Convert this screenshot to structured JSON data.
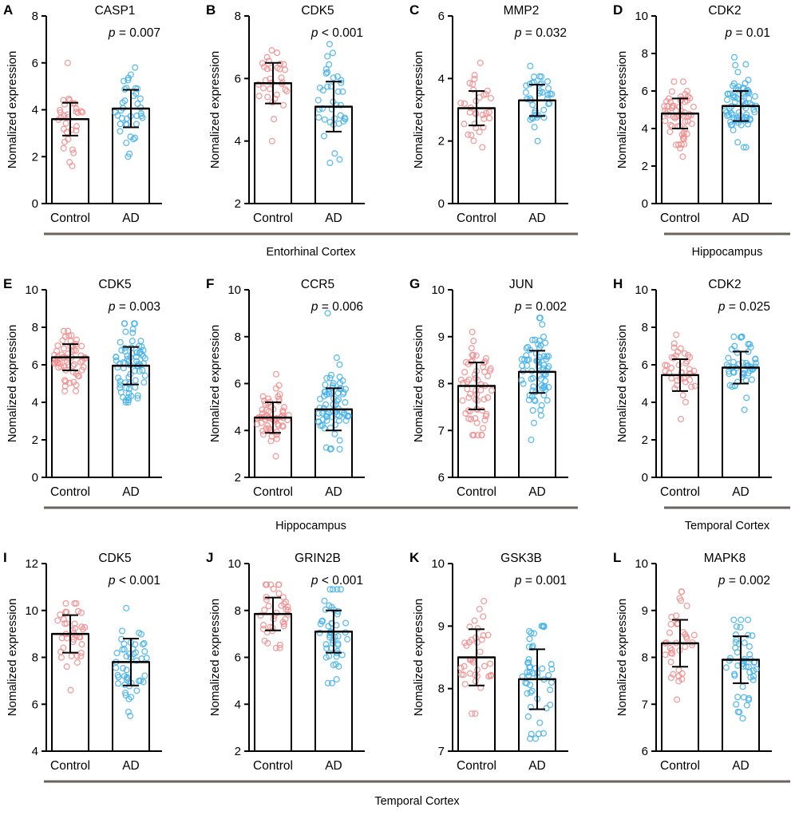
{
  "colors": {
    "control": "#f08c8c",
    "ad": "#42b0ea",
    "axis": "#000000",
    "bracket": "#6b635b"
  },
  "ylabel": "Nomalized expression",
  "chart_data": [
    {
      "panel": "A",
      "title": "CASP1",
      "type": "bar",
      "categories": [
        "Control",
        "AD"
      ],
      "values": [
        3.6,
        4.05
      ],
      "sd": [
        0.7,
        0.8
      ],
      "ylim": [
        0,
        8
      ],
      "yticks": [
        0,
        2,
        4,
        6,
        8
      ],
      "pvalue": "0.007",
      "p_op": "=",
      "n": [
        32,
        38
      ],
      "ctrl_range": [
        1.6,
        6.0
      ],
      "ad_range": [
        2.0,
        5.8
      ]
    },
    {
      "panel": "B",
      "title": "CDK5",
      "type": "bar",
      "categories": [
        "Control",
        "AD"
      ],
      "values": [
        5.85,
        5.1
      ],
      "sd": [
        0.65,
        0.8
      ],
      "ylim": [
        2,
        8
      ],
      "yticks": [
        2,
        4,
        6,
        8
      ],
      "pvalue": "0.001",
      "p_op": "<",
      "n": [
        32,
        38
      ],
      "ctrl_range": [
        4.0,
        6.9
      ],
      "ad_range": [
        3.3,
        7.1
      ]
    },
    {
      "panel": "C",
      "title": "MMP2",
      "type": "bar",
      "categories": [
        "Control",
        "AD"
      ],
      "values": [
        3.05,
        3.3
      ],
      "sd": [
        0.55,
        0.5
      ],
      "ylim": [
        0,
        6
      ],
      "yticks": [
        0,
        2,
        4,
        6
      ],
      "pvalue": "0.032",
      "p_op": "=",
      "n": [
        32,
        38
      ],
      "ctrl_range": [
        1.8,
        4.5
      ],
      "ad_range": [
        2.0,
        4.4
      ]
    },
    {
      "panel": "D",
      "title": "CDK2",
      "type": "bar",
      "categories": [
        "Control",
        "AD"
      ],
      "values": [
        4.8,
        5.2
      ],
      "sd": [
        0.8,
        0.8
      ],
      "ylim": [
        0,
        10
      ],
      "yticks": [
        0,
        2,
        4,
        6,
        8,
        10
      ],
      "pvalue": "0.01",
      "p_op": "=",
      "n": [
        60,
        72
      ],
      "ctrl_range": [
        2.5,
        6.5
      ],
      "ad_range": [
        3.0,
        7.8
      ]
    },
    {
      "panel": "E",
      "title": "CDK5",
      "type": "bar",
      "categories": [
        "Control",
        "AD"
      ],
      "values": [
        6.4,
        5.95
      ],
      "sd": [
        0.7,
        1.0
      ],
      "ylim": [
        0,
        10
      ],
      "yticks": [
        0,
        2,
        4,
        6,
        8,
        10
      ],
      "pvalue": "0.003",
      "p_op": "=",
      "n": [
        60,
        72
      ],
      "ctrl_range": [
        4.6,
        7.8
      ],
      "ad_range": [
        4.0,
        8.2
      ]
    },
    {
      "panel": "F",
      "title": "CCR5",
      "type": "bar",
      "categories": [
        "Control",
        "AD"
      ],
      "values": [
        4.55,
        4.9
      ],
      "sd": [
        0.65,
        0.9
      ],
      "ylim": [
        2,
        10
      ],
      "yticks": [
        2,
        4,
        6,
        8,
        10
      ],
      "pvalue": "0.006",
      "p_op": "=",
      "n": [
        60,
        72
      ],
      "ctrl_range": [
        2.9,
        6.4
      ],
      "ad_range": [
        3.2,
        9.0
      ]
    },
    {
      "panel": "G",
      "title": "JUN",
      "type": "bar",
      "categories": [
        "Control",
        "AD"
      ],
      "values": [
        7.95,
        8.25
      ],
      "sd": [
        0.5,
        0.45
      ],
      "ylim": [
        6,
        10
      ],
      "yticks": [
        6,
        7,
        8,
        9,
        10
      ],
      "pvalue": "0.002",
      "p_op": "=",
      "n": [
        60,
        72
      ],
      "ctrl_range": [
        6.9,
        9.1
      ],
      "ad_range": [
        6.8,
        9.4
      ]
    },
    {
      "panel": "H",
      "title": "CDK2",
      "type": "bar",
      "categories": [
        "Control",
        "AD"
      ],
      "values": [
        5.45,
        5.85
      ],
      "sd": [
        0.85,
        0.85
      ],
      "ylim": [
        0,
        10
      ],
      "yticks": [
        0,
        2,
        4,
        6,
        8,
        10
      ],
      "pvalue": "0.025",
      "p_op": "=",
      "n": [
        38,
        48
      ],
      "ctrl_range": [
        3.1,
        7.6
      ],
      "ad_range": [
        3.6,
        7.5
      ]
    },
    {
      "panel": "I",
      "title": "CDK5",
      "type": "bar",
      "categories": [
        "Control",
        "AD"
      ],
      "values": [
        9.0,
        7.8
      ],
      "sd": [
        0.8,
        1.0
      ],
      "ylim": [
        4,
        12
      ],
      "yticks": [
        4,
        6,
        8,
        10,
        12
      ],
      "pvalue": "0.001",
      "p_op": "<",
      "n": [
        38,
        48
      ],
      "ctrl_range": [
        6.6,
        10.3
      ],
      "ad_range": [
        5.5,
        10.1
      ]
    },
    {
      "panel": "J",
      "title": "GRIN2B",
      "type": "bar",
      "categories": [
        "Control",
        "AD"
      ],
      "values": [
        7.85,
        7.1
      ],
      "sd": [
        0.7,
        0.9
      ],
      "ylim": [
        2,
        10
      ],
      "yticks": [
        2,
        4,
        6,
        8,
        10
      ],
      "pvalue": "0.001",
      "p_op": "<",
      "n": [
        38,
        48
      ],
      "ctrl_range": [
        6.4,
        9.1
      ],
      "ad_range": [
        4.9,
        8.9
      ]
    },
    {
      "panel": "K",
      "title": "GSK3B",
      "type": "bar",
      "categories": [
        "Control",
        "AD"
      ],
      "values": [
        8.5,
        8.15
      ],
      "sd": [
        0.45,
        0.48
      ],
      "ylim": [
        7,
        10
      ],
      "yticks": [
        7,
        8,
        9,
        10
      ],
      "pvalue": "0.001",
      "p_op": "=",
      "n": [
        38,
        48
      ],
      "ctrl_range": [
        7.6,
        9.4
      ],
      "ad_range": [
        7.2,
        9.0
      ]
    },
    {
      "panel": "L",
      "title": "MAPK8",
      "type": "bar",
      "categories": [
        "Control",
        "AD"
      ],
      "values": [
        8.3,
        7.95
      ],
      "sd": [
        0.5,
        0.5
      ],
      "ylim": [
        6,
        10
      ],
      "yticks": [
        6,
        7,
        8,
        9,
        10
      ],
      "pvalue": "0.002",
      "p_op": "=",
      "n": [
        38,
        48
      ],
      "ctrl_range": [
        7.1,
        9.4
      ],
      "ad_range": [
        6.7,
        8.8
      ]
    }
  ],
  "regions": [
    "Entorhinal Cortex",
    "Hippocampus",
    "Hippocampus",
    "Temporal Cortex",
    "Temporal Cortex"
  ]
}
